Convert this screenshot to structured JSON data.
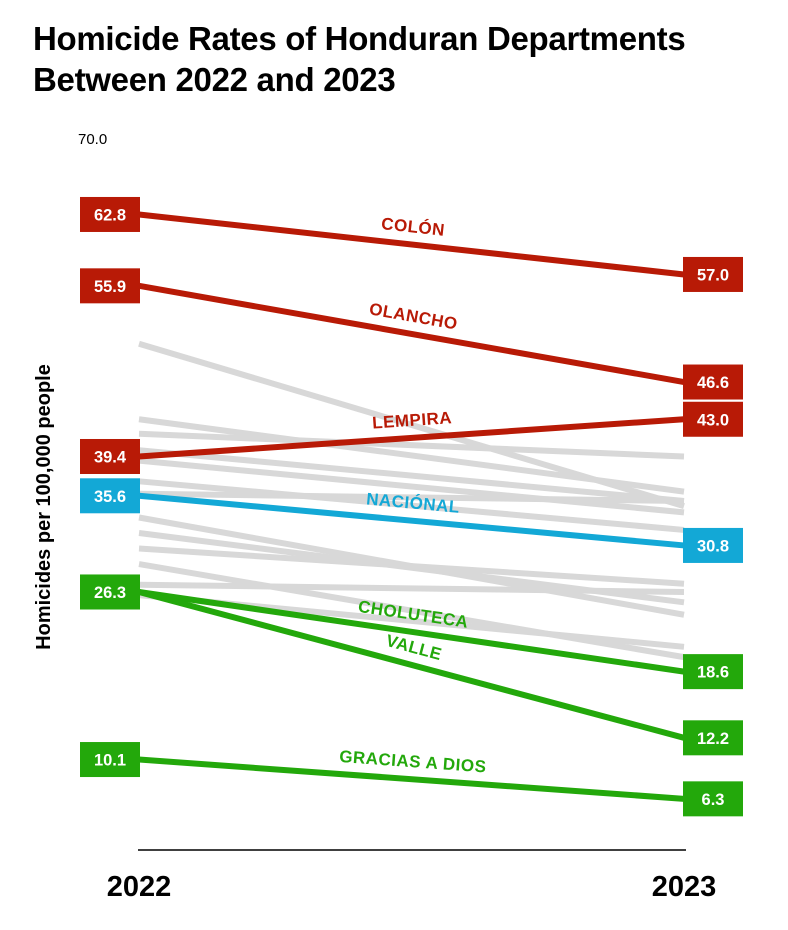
{
  "chart_data": {
    "type": "line",
    "title": "Homicide Rates of Honduran Departments Between 2022 and 2023",
    "ylabel": "Homicides per 100,000 people",
    "xlabel": "",
    "x": [
      "2022",
      "2023"
    ],
    "y_top_tick": "70.0",
    "ylim": [
      0,
      70
    ],
    "grid": false,
    "colors": {
      "red": "#b81a06",
      "blue": "#13a8d6",
      "green": "#23a80b",
      "gray": "#d8d8d8"
    },
    "series": [
      {
        "name": "COLÓN",
        "values": [
          62.8,
          57.0
        ],
        "labels": [
          "62.8",
          "57.0"
        ],
        "color": "red"
      },
      {
        "name": "OLANCHO",
        "values": [
          55.9,
          46.6
        ],
        "labels": [
          "55.9",
          "46.6"
        ],
        "color": "red"
      },
      {
        "name": "LEMPIRA",
        "values": [
          39.4,
          43.0
        ],
        "labels": [
          "39.4",
          "43.0"
        ],
        "color": "red"
      },
      {
        "name": "NACIÓNAL",
        "values": [
          35.6,
          30.8
        ],
        "labels": [
          "35.6",
          "30.8"
        ],
        "color": "blue"
      },
      {
        "name": "CHOLUTECA",
        "values": [
          26.3,
          18.6
        ],
        "labels": [
          "26.3",
          "18.6"
        ],
        "color": "green"
      },
      {
        "name": "VALLE",
        "values": [
          26.3,
          12.2
        ],
        "labels": [
          "26.3",
          "12.2"
        ],
        "color": "green"
      },
      {
        "name": "GRACIAS A DIOS",
        "values": [
          10.1,
          6.3
        ],
        "labels": [
          "10.1",
          "6.3"
        ],
        "color": "green"
      }
    ],
    "background_series": [
      [
        50.3,
        34.6
      ],
      [
        43.0,
        36.0
      ],
      [
        41.6,
        39.4
      ],
      [
        40.0,
        35.1
      ],
      [
        39.0,
        34.0
      ],
      [
        37.0,
        32.3
      ],
      [
        35.8,
        35.1
      ],
      [
        33.5,
        24.1
      ],
      [
        32.0,
        25.3
      ],
      [
        30.5,
        27.1
      ],
      [
        27.0,
        26.3
      ],
      [
        26.0,
        21.0
      ],
      [
        29.0,
        20.0
      ]
    ]
  }
}
